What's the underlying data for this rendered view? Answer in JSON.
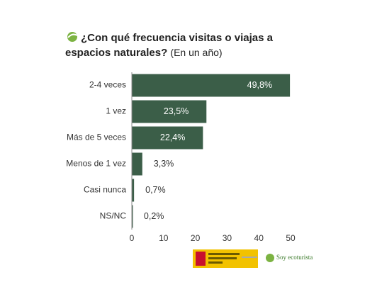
{
  "chart_data": {
    "type": "bar",
    "orientation": "horizontal",
    "title": "¿Con qué frecuencia visitas o viajas a espacios naturales?",
    "subtitle": "(En un año)",
    "categories": [
      "2-4 veces",
      "1 vez",
      "Más de 5 veces",
      "Menos de 1 vez",
      "Casi nunca",
      "NS/NC"
    ],
    "values": [
      49.8,
      23.5,
      22.4,
      3.3,
      0.7,
      0.2
    ],
    "value_labels": [
      "49,8%",
      "23,5%",
      "22,4%",
      "3,3%",
      "0,7%",
      "0,2%"
    ],
    "color": "#3b5e48",
    "xlim": [
      0,
      50
    ],
    "xticks": [
      0,
      10,
      20,
      30,
      40,
      50
    ],
    "footer": "Soy ecoturista"
  }
}
